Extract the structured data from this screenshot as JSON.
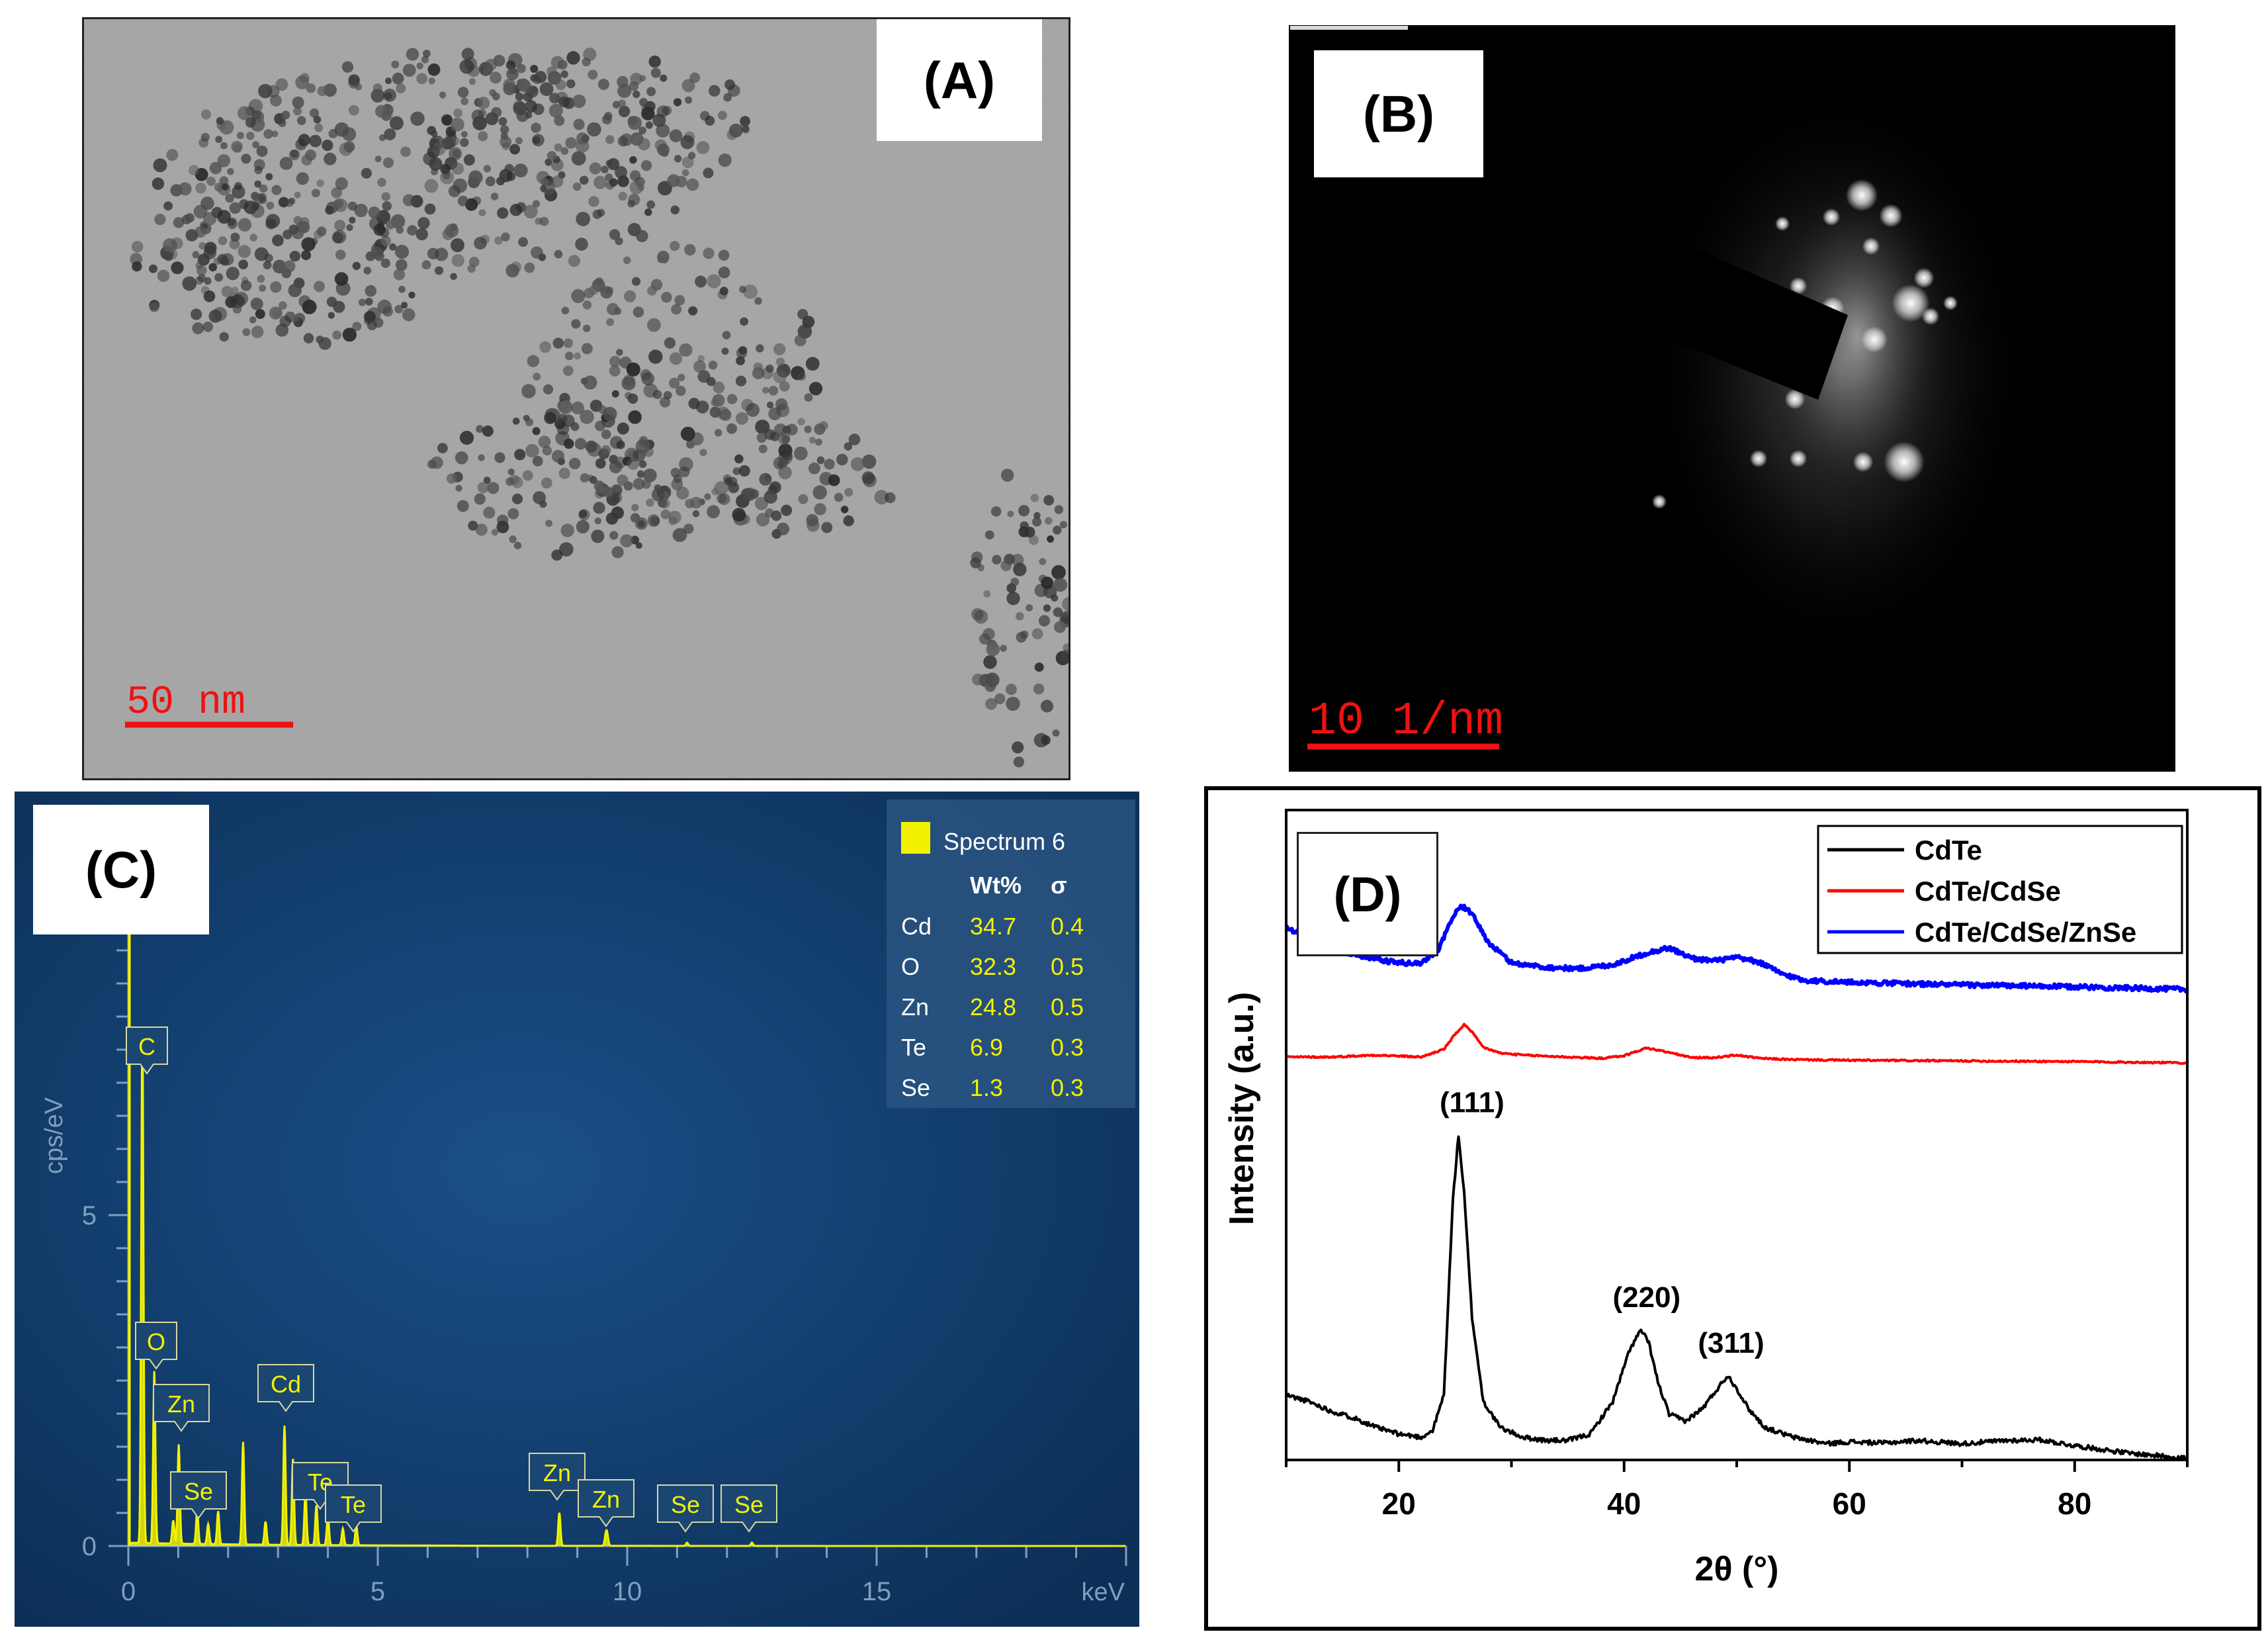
{
  "panels": {
    "A": {
      "label": "(A)",
      "scale_bar": "50 nm"
    },
    "B": {
      "label": "(B)",
      "scale_bar": "10 1/nm"
    },
    "C": {
      "label": "(C)"
    },
    "D": {
      "label": "(D)"
    }
  },
  "chart_data": [
    {
      "type": "line",
      "panel": "C",
      "title": "",
      "xlabel": "keV",
      "ylabel": "cps/eV",
      "xlim": [
        0,
        20
      ],
      "ylim": [
        0,
        10
      ],
      "x_ticks": [
        0,
        5,
        10,
        15
      ],
      "y_ticks": [
        0,
        5
      ],
      "colors": {
        "background": "#0f3862",
        "spectrum": "#f2f200",
        "text": "#7f9fbf"
      },
      "legend": {
        "series": "Spectrum 6",
        "headers": [
          "",
          "Wt%",
          "σ"
        ],
        "rows": [
          [
            "Cd",
            "34.7",
            "0.4"
          ],
          [
            "O",
            "32.3",
            "0.5"
          ],
          [
            "Zn",
            "24.8",
            "0.5"
          ],
          [
            "Te",
            "6.9",
            "0.3"
          ],
          [
            "Se",
            "1.3",
            "0.3"
          ]
        ]
      },
      "peaks": [
        {
          "element": "C",
          "keV": 0.28,
          "cps": 7.8
        },
        {
          "element": "O",
          "keV": 0.52,
          "cps": 2.6
        },
        {
          "element": "Zn",
          "keV": 1.01,
          "cps": 1.5
        },
        {
          "element": "Se",
          "keV": 1.38,
          "cps": 0.5
        },
        {
          "element": "Cd",
          "keV": 3.13,
          "cps": 1.8
        },
        {
          "element": "Te",
          "keV": 3.77,
          "cps": 0.6
        },
        {
          "element": "Te",
          "keV": 4.57,
          "cps": 0.3
        },
        {
          "element": "Zn",
          "keV": 8.64,
          "cps": 0.5
        },
        {
          "element": "Zn",
          "keV": 9.57,
          "cps": 0.15
        },
        {
          "element": "Se",
          "keV": 11.2,
          "cps": 0.05
        },
        {
          "element": "Se",
          "keV": 12.5,
          "cps": 0.05
        }
      ]
    },
    {
      "type": "line",
      "panel": "D",
      "title": "",
      "xlabel": "2θ (°)",
      "ylabel": "Intensity (a.u.)",
      "xlim": [
        10,
        90
      ],
      "x_ticks": [
        20,
        40,
        60,
        80
      ],
      "grid": false,
      "legend_position": "top-right",
      "series": [
        {
          "name": "CdTe",
          "color": "#000000",
          "x": [
            10,
            12,
            14,
            16,
            18,
            20,
            22,
            23,
            24,
            24.8,
            25.3,
            25.8,
            26.5,
            27.5,
            29,
            31,
            33,
            35,
            37,
            39,
            40.5,
            41.5,
            42.2,
            43,
            44,
            45.5,
            47,
            48.3,
            49.2,
            50,
            51,
            52.5,
            55,
            58,
            60,
            63,
            66,
            70,
            74,
            77,
            80,
            85,
            90
          ],
          "y": [
            10,
            9,
            7.5,
            6.5,
            5,
            4,
            3.5,
            4.5,
            10,
            40,
            50,
            41,
            22,
            9,
            5,
            3.5,
            3,
            3,
            4,
            9,
            17,
            20,
            18,
            12,
            7,
            6,
            8,
            11,
            13,
            11,
            8,
            5,
            3.5,
            2.5,
            2.8,
            2.6,
            3,
            2.5,
            3,
            3.1,
            2.2,
            1,
            0.3
          ]
        },
        {
          "name": "CdTe/CdSe",
          "color": "#ff0000",
          "x": [
            10,
            14,
            18,
            22,
            24,
            25,
            25.8,
            26.5,
            27.5,
            29,
            31,
            35,
            38,
            40,
            42,
            44,
            46,
            48,
            50,
            52,
            55,
            60,
            70,
            80,
            90
          ],
          "y": [
            62,
            62,
            62.3,
            62,
            63.2,
            65.5,
            67,
            65.8,
            63.5,
            62.6,
            62.3,
            62,
            61.8,
            62.2,
            63.4,
            62.7,
            61.9,
            61.9,
            62.3,
            61.8,
            61.6,
            61.5,
            61.4,
            61.3,
            61.1
          ]
        },
        {
          "name": "CdTe/CdSe/ZnSe",
          "color": "#0000ff",
          "x": [
            10,
            12,
            14,
            16,
            18,
            20,
            22,
            23.5,
            24.5,
            25.5,
            26.5,
            28,
            30,
            33,
            36,
            39,
            42,
            44,
            46,
            48,
            50,
            52,
            54,
            56,
            60,
            65,
            70,
            80,
            90
          ],
          "y": [
            82,
            80.3,
            78.8,
            77.8,
            77,
            76.5,
            76.4,
            78.5,
            82.5,
            85.4,
            84,
            79.5,
            76.5,
            75.8,
            75.6,
            76.2,
            78,
            78.8,
            77.2,
            76.8,
            77.3,
            76.6,
            74.8,
            73.8,
            73.5,
            73.3,
            73.1,
            72.8,
            72.4
          ]
        }
      ],
      "annotations": [
        {
          "text": "(111)",
          "x": 26.5,
          "y": 53.5
        },
        {
          "text": "(220)",
          "x": 42,
          "y": 23.5
        },
        {
          "text": "(311)",
          "x": 49.5,
          "y": 16.5
        }
      ]
    }
  ]
}
